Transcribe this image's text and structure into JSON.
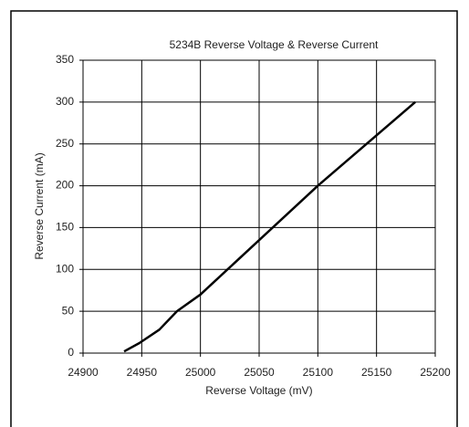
{
  "chart_data": {
    "type": "line",
    "title": "5234B Reverse Voltage & Reverse Current",
    "x_label": "Reverse Voltage (mV)",
    "y_label": "Reverse Current (mA)",
    "x": [
      24935,
      24948,
      24965,
      24980,
      25000,
      25100,
      25183
    ],
    "series": [
      {
        "name": "Reverse Current",
        "color": "#000000",
        "values": [
          2,
          12,
          28,
          50,
          70,
          200,
          300
        ]
      }
    ],
    "xlim": [
      24900,
      25200
    ],
    "xticks": [
      24900,
      24950,
      25000,
      25050,
      25100,
      25150,
      25200
    ],
    "ylim": [
      0,
      350
    ],
    "yticks": [
      0,
      50,
      100,
      150,
      200,
      250,
      300,
      350
    ],
    "grid": true
  }
}
